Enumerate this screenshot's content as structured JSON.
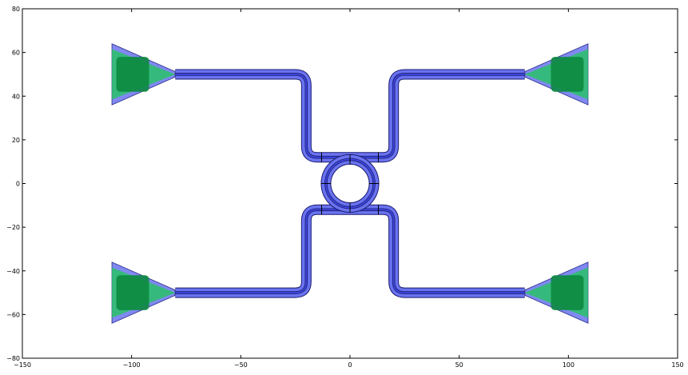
{
  "chart_data": {
    "type": "scatter",
    "title": "",
    "xlabel": "",
    "ylabel": "",
    "xlim": [
      -150,
      150
    ],
    "ylim": [
      -80,
      80
    ],
    "xticks": [
      -150,
      -100,
      -50,
      0,
      50,
      100,
      150
    ],
    "yticks": [
      -80,
      -60,
      -40,
      -20,
      0,
      20,
      40,
      60,
      80
    ],
    "xtick_labels": [
      "−150",
      "−100",
      "−50",
      "0",
      "50",
      "100",
      "150"
    ],
    "ytick_labels": [
      "−80",
      "−60",
      "−40",
      "−20",
      "0",
      "20",
      "40",
      "60",
      "80"
    ],
    "grid": false,
    "ring": {
      "center": [
        0,
        0
      ],
      "radius": 11
    },
    "waveguide_paths": [
      {
        "name": "",
        "points": [
          [
            -80,
            50
          ],
          [
            -20,
            50
          ],
          [
            -20,
            12
          ],
          [
            20,
            12
          ],
          [
            20,
            50
          ],
          [
            80,
            50
          ]
        ]
      },
      {
        "name": "",
        "points": [
          [
            -80,
            -50
          ],
          [
            -20,
            -50
          ],
          [
            -20,
            -12
          ],
          [
            20,
            -12
          ],
          [
            20,
            -50
          ],
          [
            80,
            -50
          ]
        ]
      }
    ],
    "grating_couplers": [
      {
        "name": "",
        "x_wide": -109,
        "x_narrow": -80,
        "y": 50
      },
      {
        "name": "",
        "x_wide": 109,
        "x_narrow": 80,
        "y": 50
      },
      {
        "name": "",
        "x_wide": -109,
        "x_narrow": -80,
        "y": -50
      },
      {
        "name": "",
        "x_wide": 109,
        "x_narrow": 80,
        "y": -50
      }
    ],
    "colors": {
      "waveguide": "#6a73f0",
      "waveguide_core": "#3a44e0",
      "taper": "#3b49e8",
      "grating_outer": "#2fbf6f",
      "grating_inner": "#0c8a3f"
    }
  }
}
